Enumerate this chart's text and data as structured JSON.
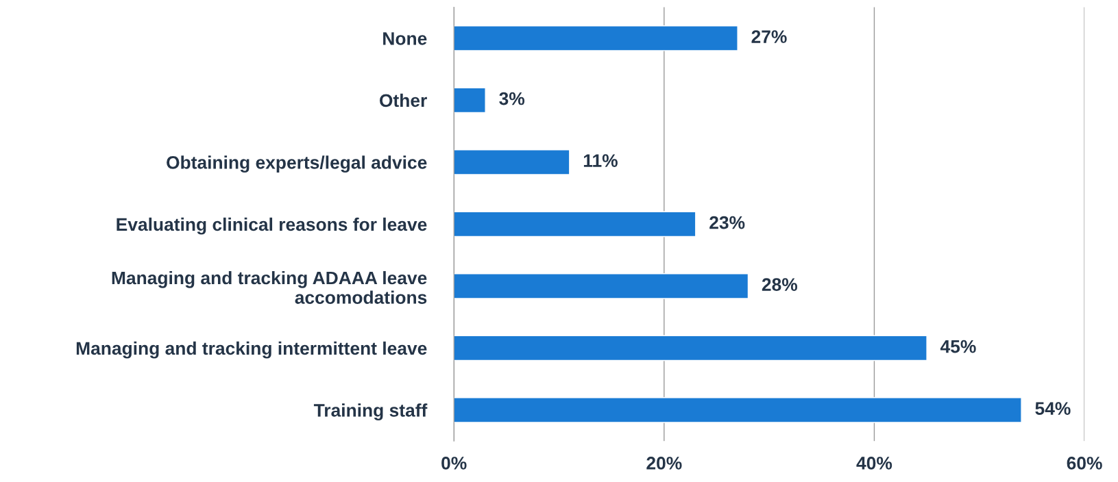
{
  "chart_data": {
    "type": "bar",
    "orientation": "horizontal",
    "categories": [
      "None",
      "Other",
      "Obtaining experts/legal advice",
      "Evaluating clinical reasons for leave",
      "Managing and tracking ADAAA leave\naccomodations",
      "Managing and tracking intermittent leave",
      "Training staff"
    ],
    "values": [
      27,
      3,
      11,
      23,
      28,
      45,
      54
    ],
    "value_labels": [
      "27%",
      "3%",
      "11%",
      "23%",
      "28%",
      "45%",
      "54%"
    ],
    "color": "#1a7bd4",
    "xlim": [
      0,
      60
    ],
    "xticks": [
      {
        "value": 0,
        "label": "0%"
      },
      {
        "value": 20,
        "label": "20%"
      },
      {
        "value": 40,
        "label": "40%"
      },
      {
        "value": 60,
        "label": "60%"
      }
    ],
    "grid": "x"
  }
}
